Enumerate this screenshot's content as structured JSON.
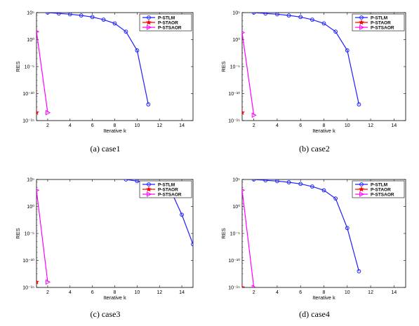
{
  "colors": {
    "P-STLM": "#1f1fff",
    "P-STAOR": "#ff0000",
    "P-STSAOR": "#ff00ff"
  },
  "chart_data": [
    {
      "type": "line",
      "caption": "(a)  case1",
      "xlabel": "Iterative k",
      "ylabel": "RES",
      "yscale": "log",
      "xlim": [
        1,
        15
      ],
      "ylim": [
        1e-15,
        100000.0
      ],
      "xticks": [
        2,
        4,
        6,
        8,
        10,
        12,
        14
      ],
      "yticks": [
        1e-15,
        1e-10,
        1e-05,
        1.0,
        100000.0
      ],
      "ytick_labels": [
        "10⁻¹⁵",
        "10⁻¹⁰",
        "10⁻⁵",
        "10⁰",
        "10⁵"
      ],
      "legend": "top-right",
      "series": [
        {
          "name": "P-STLM",
          "marker": "circle",
          "x": [
            2,
            3,
            4,
            5,
            6,
            7,
            8,
            9,
            10,
            11
          ],
          "y": [
            100000.0,
            70000.0,
            50000.0,
            30000.0,
            15000.0,
            5000.0,
            1000.0,
            30.0,
            0.01,
            1e-12
          ]
        },
        {
          "name": "P-STAOR",
          "marker": "star",
          "x": [
            1
          ],
          "y": [
            3e-14
          ]
        },
        {
          "name": "P-STSAOR",
          "marker": "triangle-right",
          "x": [
            1,
            2
          ],
          "y": [
            30,
            3e-14
          ]
        }
      ]
    },
    {
      "type": "line",
      "caption": "(b)  case2",
      "xlabel": "Iterative k",
      "ylabel": "RES",
      "yscale": "log",
      "xlim": [
        1,
        15
      ],
      "ylim": [
        1e-15,
        100000.0
      ],
      "xticks": [
        2,
        4,
        6,
        8,
        10,
        12,
        14
      ],
      "yticks": [
        1e-15,
        1e-10,
        1e-05,
        1.0,
        100000.0
      ],
      "ytick_labels": [
        "10⁻¹⁵",
        "10⁻¹⁰",
        "10⁻⁵",
        "10⁰",
        "10⁵"
      ],
      "legend": "top-right",
      "series": [
        {
          "name": "P-STLM",
          "marker": "circle",
          "x": [
            2,
            3,
            4,
            5,
            6,
            7,
            8,
            9,
            10,
            11
          ],
          "y": [
            100000.0,
            70000.0,
            50000.0,
            30000.0,
            15000.0,
            5000.0,
            1000.0,
            30.0,
            0.01,
            1e-12
          ]
        },
        {
          "name": "P-STAOR",
          "marker": "star",
          "x": [
            1
          ],
          "y": [
            3e-14
          ]
        },
        {
          "name": "P-STSAOR",
          "marker": "triangle-right",
          "x": [
            1,
            2
          ],
          "y": [
            20,
            1e-14
          ]
        }
      ]
    },
    {
      "type": "line",
      "caption": "(c)  case3",
      "xlabel": "Iterative k",
      "ylabel": "RES",
      "yscale": "log",
      "xlim": [
        1,
        15
      ],
      "ylim": [
        1e-15,
        100000.0
      ],
      "xticks": [
        2,
        4,
        6,
        8,
        10,
        12,
        14
      ],
      "yticks": [
        1e-15,
        1e-10,
        1e-05,
        1.0,
        100000.0
      ],
      "ytick_labels": [
        "10⁻¹⁵",
        "10⁻¹⁰",
        "10⁻⁵",
        "10⁰",
        "10⁵"
      ],
      "legend": "top-right",
      "series": [
        {
          "name": "P-STLM",
          "marker": "circle",
          "x": [
            9,
            10,
            11,
            12,
            13,
            14,
            15
          ],
          "y": [
            100000.0,
            50000.0,
            15000.0,
            5000.0,
            1000.0,
            0.03,
            1e-07
          ]
        },
        {
          "name": "P-STAOR",
          "marker": "star",
          "x": [
            1
          ],
          "y": [
            1e-14
          ]
        },
        {
          "name": "P-STSAOR",
          "marker": "triangle-right",
          "x": [
            1,
            2
          ],
          "y": [
            1000.0,
            1e-14
          ]
        }
      ]
    },
    {
      "type": "line",
      "caption": "(d)  case4",
      "xlabel": "Iterative k",
      "ylabel": "RES",
      "yscale": "log",
      "xlim": [
        1,
        15
      ],
      "ylim": [
        1e-15,
        100000.0
      ],
      "xticks": [
        2,
        4,
        6,
        8,
        10,
        12,
        14
      ],
      "yticks": [
        1e-15,
        1e-10,
        1e-05,
        1.0,
        100000.0
      ],
      "ytick_labels": [
        "10⁻¹⁵",
        "10⁻¹⁰",
        "10⁻⁵",
        "10⁰",
        "10⁵"
      ],
      "legend": "top-right",
      "series": [
        {
          "name": "P-STLM",
          "marker": "circle",
          "x": [
            2,
            3,
            4,
            5,
            6,
            7,
            8,
            9,
            10,
            11
          ],
          "y": [
            100000.0,
            70000.0,
            50000.0,
            30000.0,
            15000.0,
            5000.0,
            1000.0,
            30.0,
            0.0001,
            1e-12
          ]
        },
        {
          "name": "P-STAOR",
          "marker": "star",
          "x": [
            1
          ],
          "y": [
            1e-15
          ]
        },
        {
          "name": "P-STSAOR",
          "marker": "triangle-right",
          "x": [
            1,
            2
          ],
          "y": [
            1000.0,
            1e-15
          ]
        }
      ]
    }
  ]
}
